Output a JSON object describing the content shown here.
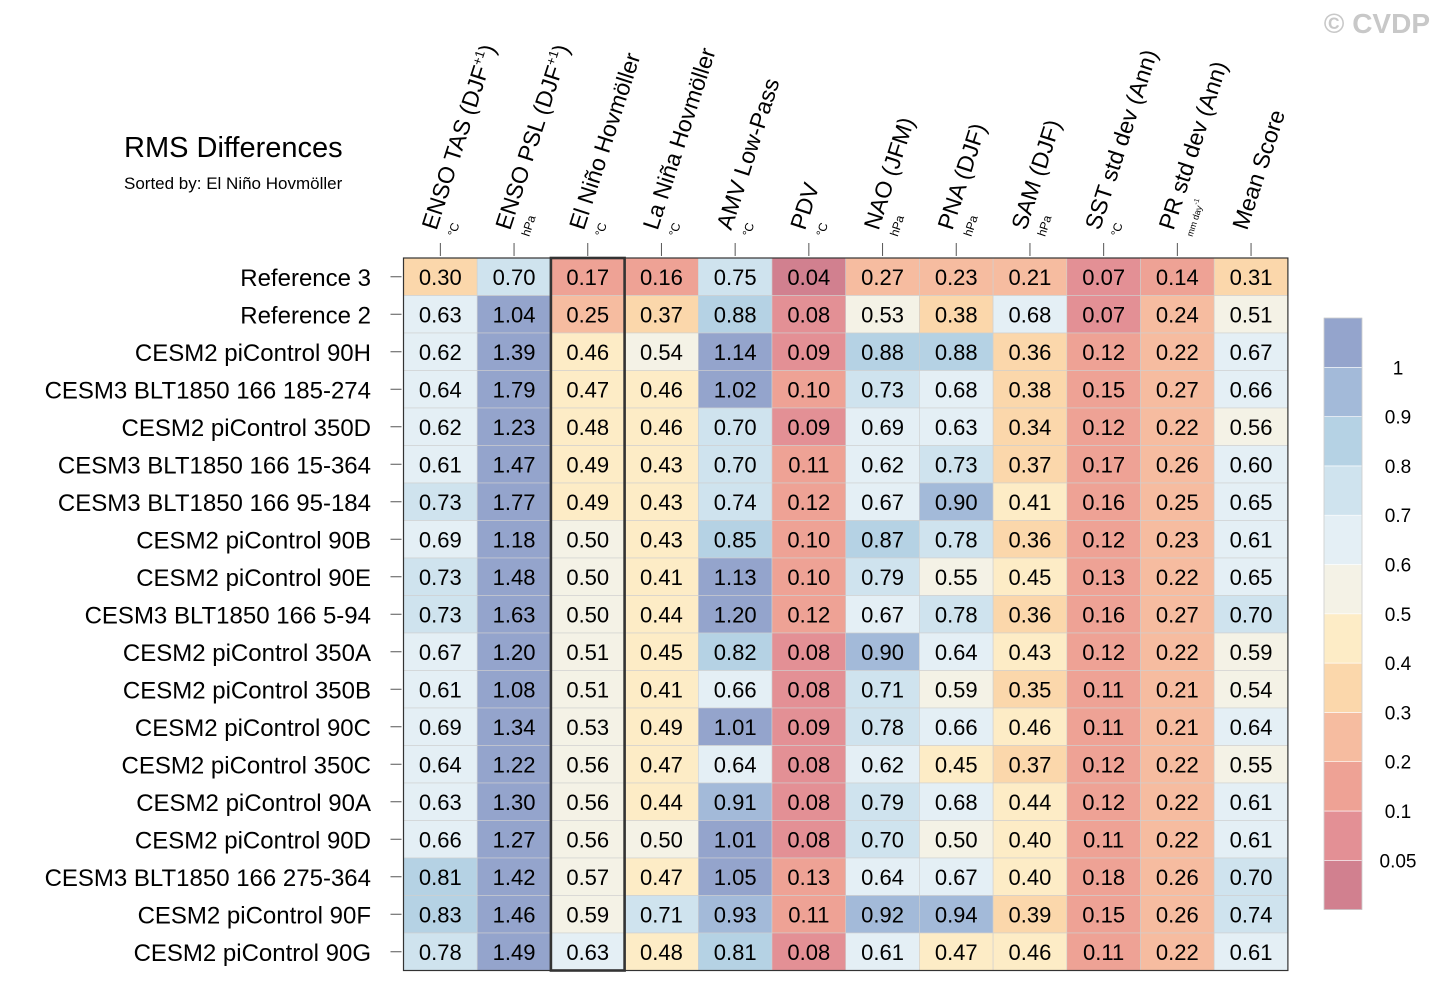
{
  "watermark": "© CVDP",
  "chart_data": {
    "type": "heatmap",
    "title": "RMS Differences",
    "subtitle": "Sorted by: El Niño Hovmöller",
    "highlight_column": "El Niño Hovmöller",
    "columns": [
      {
        "name": "ENSO TAS (DJF",
        "sup": "+1",
        "tail": ")",
        "unit": "°C"
      },
      {
        "name": "ENSO PSL (DJF",
        "sup": "+1",
        "tail": ")",
        "unit": "hPa"
      },
      {
        "name": "El Niño Hovmöller",
        "sup": "",
        "tail": "",
        "unit": "°C"
      },
      {
        "name": "La Niña Hovmöller",
        "sup": "",
        "tail": "",
        "unit": "°C"
      },
      {
        "name": "AMV Low-Pass",
        "sup": "",
        "tail": "",
        "unit": "°C"
      },
      {
        "name": "PDV",
        "sup": "",
        "tail": "",
        "unit": "°C"
      },
      {
        "name": "NAO (JFM)",
        "sup": "",
        "tail": "",
        "unit": "hPa"
      },
      {
        "name": "PNA (DJF)",
        "sup": "",
        "tail": "",
        "unit": "hPa"
      },
      {
        "name": "SAM (DJF)",
        "sup": "",
        "tail": "",
        "unit": "hPa"
      },
      {
        "name": "SST std dev (Ann)",
        "sup": "",
        "tail": "",
        "unit": "°C"
      },
      {
        "name": "PR std dev (Ann)",
        "sup": "",
        "tail": "",
        "unit": "mm day",
        "unit_sup": "-1"
      },
      {
        "name": "Mean Score",
        "sup": "",
        "tail": "",
        "unit": ""
      }
    ],
    "rows": [
      "Reference 3",
      "Reference 2",
      "CESM2 piControl 90H",
      "CESM3 BLT1850 166 185-274",
      "CESM2 piControl 350D",
      "CESM3 BLT1850 166 15-364",
      "CESM3 BLT1850 166 95-184",
      "CESM2 piControl 90B",
      "CESM2 piControl 90E",
      "CESM3 BLT1850 166 5-94",
      "CESM2 piControl 350A",
      "CESM2 piControl 350B",
      "CESM2 piControl 90C",
      "CESM2 piControl 350C",
      "CESM2 piControl 90A",
      "CESM2 piControl 90D",
      "CESM3 BLT1850 166 275-364",
      "CESM2 piControl 90F",
      "CESM2 piControl 90G"
    ],
    "values": [
      [
        "0.30",
        "0.70",
        "0.17",
        "0.16",
        "0.75",
        "0.04",
        "0.27",
        "0.23",
        "0.21",
        "0.07",
        "0.14",
        "0.31"
      ],
      [
        "0.63",
        "1.04",
        "0.25",
        "0.37",
        "0.88",
        "0.08",
        "0.53",
        "0.38",
        "0.68",
        "0.07",
        "0.24",
        "0.51"
      ],
      [
        "0.62",
        "1.39",
        "0.46",
        "0.54",
        "1.14",
        "0.09",
        "0.88",
        "0.88",
        "0.36",
        "0.12",
        "0.22",
        "0.67"
      ],
      [
        "0.64",
        "1.79",
        "0.47",
        "0.46",
        "1.02",
        "0.10",
        "0.73",
        "0.68",
        "0.38",
        "0.15",
        "0.27",
        "0.66"
      ],
      [
        "0.62",
        "1.23",
        "0.48",
        "0.46",
        "0.70",
        "0.09",
        "0.69",
        "0.63",
        "0.34",
        "0.12",
        "0.22",
        "0.56"
      ],
      [
        "0.61",
        "1.47",
        "0.49",
        "0.43",
        "0.70",
        "0.11",
        "0.62",
        "0.73",
        "0.37",
        "0.17",
        "0.26",
        "0.60"
      ],
      [
        "0.73",
        "1.77",
        "0.49",
        "0.43",
        "0.74",
        "0.12",
        "0.67",
        "0.90",
        "0.41",
        "0.16",
        "0.25",
        "0.65"
      ],
      [
        "0.69",
        "1.18",
        "0.50",
        "0.43",
        "0.85",
        "0.10",
        "0.87",
        "0.78",
        "0.36",
        "0.12",
        "0.23",
        "0.61"
      ],
      [
        "0.73",
        "1.48",
        "0.50",
        "0.41",
        "1.13",
        "0.10",
        "0.79",
        "0.55",
        "0.45",
        "0.13",
        "0.22",
        "0.65"
      ],
      [
        "0.73",
        "1.63",
        "0.50",
        "0.44",
        "1.20",
        "0.12",
        "0.67",
        "0.78",
        "0.36",
        "0.16",
        "0.27",
        "0.70"
      ],
      [
        "0.67",
        "1.20",
        "0.51",
        "0.45",
        "0.82",
        "0.08",
        "0.90",
        "0.64",
        "0.43",
        "0.12",
        "0.22",
        "0.59"
      ],
      [
        "0.61",
        "1.08",
        "0.51",
        "0.41",
        "0.66",
        "0.08",
        "0.71",
        "0.59",
        "0.35",
        "0.11",
        "0.21",
        "0.54"
      ],
      [
        "0.69",
        "1.34",
        "0.53",
        "0.49",
        "1.01",
        "0.09",
        "0.78",
        "0.66",
        "0.46",
        "0.11",
        "0.21",
        "0.64"
      ],
      [
        "0.64",
        "1.22",
        "0.56",
        "0.47",
        "0.64",
        "0.08",
        "0.62",
        "0.45",
        "0.37",
        "0.12",
        "0.22",
        "0.55"
      ],
      [
        "0.63",
        "1.30",
        "0.56",
        "0.44",
        "0.91",
        "0.08",
        "0.79",
        "0.68",
        "0.44",
        "0.12",
        "0.22",
        "0.61"
      ],
      [
        "0.66",
        "1.27",
        "0.56",
        "0.50",
        "1.01",
        "0.08",
        "0.70",
        "0.50",
        "0.40",
        "0.11",
        "0.22",
        "0.61"
      ],
      [
        "0.81",
        "1.42",
        "0.57",
        "0.47",
        "1.05",
        "0.13",
        "0.64",
        "0.67",
        "0.40",
        "0.18",
        "0.26",
        "0.70"
      ],
      [
        "0.83",
        "1.46",
        "0.59",
        "0.71",
        "0.93",
        "0.11",
        "0.92",
        "0.94",
        "0.39",
        "0.15",
        "0.26",
        "0.74"
      ],
      [
        "0.78",
        "1.49",
        "0.63",
        "0.48",
        "0.81",
        "0.08",
        "0.61",
        "0.47",
        "0.46",
        "0.11",
        "0.22",
        "0.61"
      ]
    ],
    "colorbar": {
      "levels": [
        0.05,
        0.1,
        0.2,
        0.3,
        0.4,
        0.5,
        0.6,
        0.7,
        0.8,
        0.9,
        1
      ],
      "labels": [
        "0.05",
        "0.1",
        "0.2",
        "0.3",
        "0.4",
        "0.5",
        "0.6",
        "0.7",
        "0.8",
        "0.9",
        "1"
      ],
      "colors": [
        "#d1808f",
        "#e39095",
        "#eea295",
        "#f6bca0",
        "#fbd7ab",
        "#fdecc6",
        "#f4f2e6",
        "#e4eff5",
        "#cfe3ee",
        "#b5d2e4",
        "#a3bad9",
        "#94a4cc"
      ]
    }
  }
}
